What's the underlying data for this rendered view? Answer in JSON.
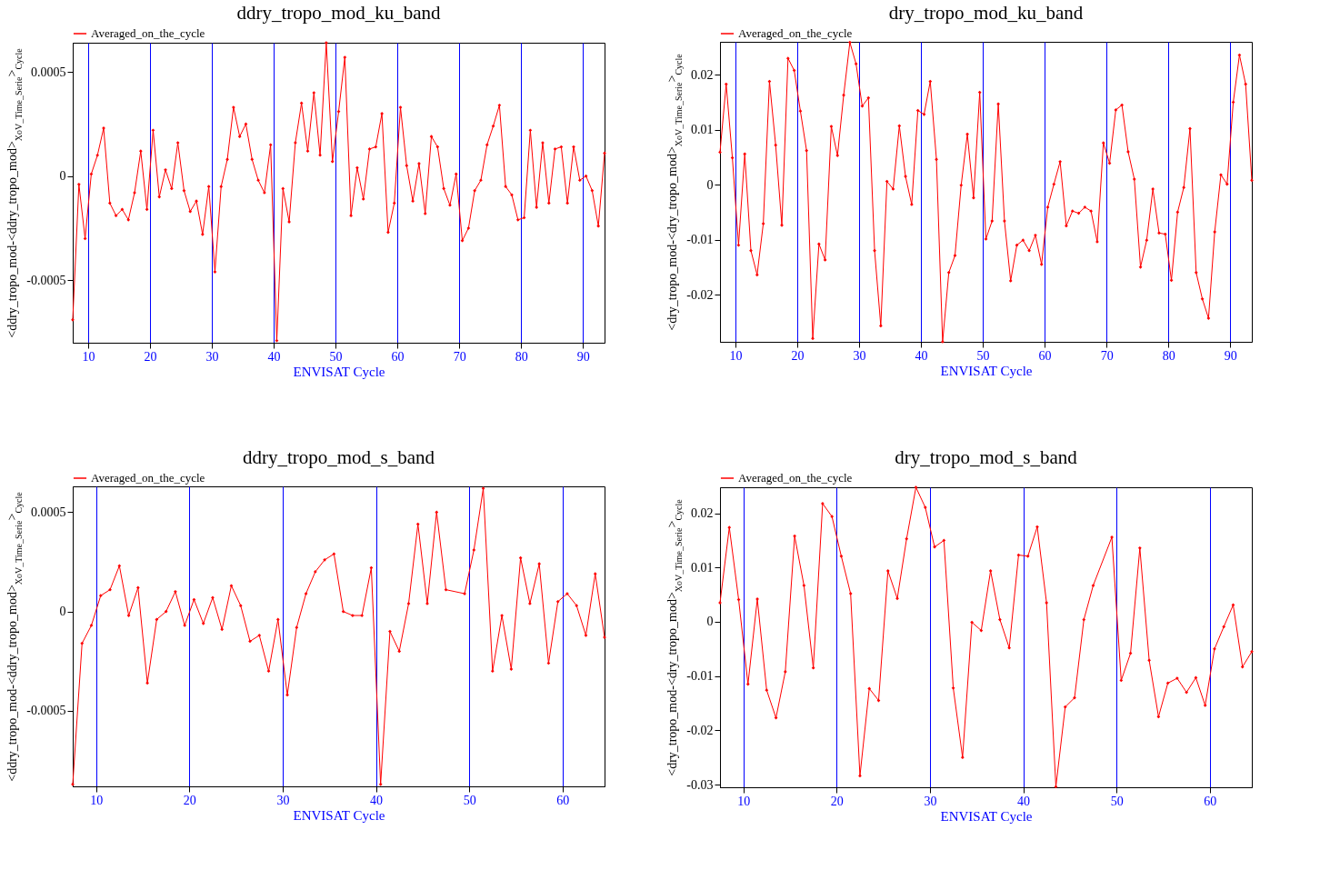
{
  "chart_data": [
    {
      "type": "line",
      "title": "ddry_tropo_mod_ku_band",
      "xlabel": "ENVISAT Cycle",
      "ylabel": "<ddry_tropo_mod-<ddry_tropo_mod>$_{XoV_Time_Serie}$>$_{Cycle}$",
      "xlim": [
        7.5,
        93.5
      ],
      "ylim": [
        -0.0008,
        0.00064
      ],
      "xticks": [
        10,
        20,
        30,
        40,
        50,
        60,
        70,
        80,
        90
      ],
      "yticks": [
        -0.0005,
        0,
        0.0005
      ],
      "grid": "x",
      "legend": "top left",
      "marker": "diamond",
      "line_style": "solid",
      "x": [
        7.5,
        8.5,
        9.5,
        10.5,
        11.5,
        12.5,
        13.5,
        14.5,
        15.5,
        16.5,
        17.5,
        18.5,
        19.5,
        20.5,
        21.5,
        22.5,
        23.5,
        24.5,
        25.5,
        26.5,
        27.5,
        28.5,
        29.5,
        30.5,
        31.5,
        32.5,
        33.5,
        34.5,
        35.5,
        36.5,
        37.5,
        38.5,
        39.5,
        40.5,
        41.5,
        42.5,
        43.5,
        44.5,
        45.5,
        46.5,
        47.5,
        48.5,
        49.5,
        50.5,
        51.5,
        52.5,
        53.5,
        54.5,
        55.5,
        56.5,
        57.5,
        58.5,
        59.5,
        60.5,
        61.5,
        62.5,
        63.5,
        64.5,
        65.5,
        66.5,
        67.5,
        68.5,
        69.5,
        70.5,
        71.5,
        72.5,
        73.5,
        74.5,
        75.5,
        76.5,
        77.5,
        78.5,
        79.5,
        80.5,
        81.5,
        82.5,
        83.5,
        84.5,
        85.5,
        86.5,
        87.5,
        88.5,
        89.5,
        90.5,
        91.5,
        92.5,
        93.5
      ],
      "series": [
        {
          "name": "Averaged_on_the_cycle",
          "color": "#ff0000",
          "values": [
            -0.00069,
            -4e-05,
            -0.0003,
            1e-05,
            0.0001,
            0.00023,
            -0.00013,
            -0.00019,
            -0.00016,
            -0.00021,
            -8e-05,
            0.00012,
            -0.00016,
            0.00022,
            -0.0001,
            3e-05,
            -6e-05,
            0.00016,
            -7e-05,
            -0.00017,
            -0.00012,
            -0.00028,
            -5e-05,
            -0.00046,
            -5e-05,
            8e-05,
            0.00033,
            0.00019,
            0.00025,
            8e-05,
            -2e-05,
            -8e-05,
            0.00015,
            -0.00079,
            -6e-05,
            -0.00022,
            0.00016,
            0.00035,
            0.00012,
            0.0004,
            0.0001,
            0.00064,
            7e-05,
            0.00031,
            0.00057,
            -0.00019,
            4e-05,
            -0.00011,
            0.00013,
            0.00014,
            0.0003,
            -0.00027,
            -0.00013,
            0.00033,
            5e-05,
            -0.00012,
            6e-05,
            -0.00018,
            0.00019,
            0.00014,
            -6e-05,
            -0.00014,
            1e-05,
            -0.00031,
            -0.00025,
            -7e-05,
            -2e-05,
            0.00015,
            0.00024,
            0.00034,
            -5e-05,
            -9e-05,
            -0.00021,
            -0.0002,
            0.00022,
            -0.00015,
            0.00016,
            -0.00013,
            0.00013,
            0.00014,
            -0.00013,
            0.00014,
            -2e-05,
            0,
            -7e-05,
            -0.00024,
            0.00011
          ]
        }
      ]
    },
    {
      "type": "line",
      "title": "dry_tropo_mod_ku_band",
      "xlabel": "ENVISAT Cycle",
      "ylabel": "<dry_tropo_mod-<dry_tropo_mod>$_{XoV_Time_Serie}$>$_{Cycle}$",
      "xlim": [
        7.5,
        93.5
      ],
      "ylim": [
        -0.0286,
        0.026
      ],
      "xticks": [
        10,
        20,
        30,
        40,
        50,
        60,
        70,
        80,
        90
      ],
      "yticks": [
        -0.02,
        -0.01,
        0,
        0.01,
        0.02
      ],
      "grid": "x",
      "legend": "top left",
      "marker": "diamond",
      "line_style": "solid",
      "x": [
        7.5,
        8.5,
        9.5,
        10.5,
        11.5,
        12.5,
        13.5,
        14.5,
        15.5,
        16.5,
        17.5,
        18.5,
        19.5,
        20.5,
        21.5,
        22.5,
        23.5,
        24.5,
        25.5,
        26.5,
        27.5,
        28.5,
        29.5,
        30.5,
        31.5,
        32.5,
        33.5,
        34.5,
        35.5,
        36.5,
        37.5,
        38.5,
        39.5,
        40.5,
        41.5,
        42.5,
        43.5,
        44.5,
        45.5,
        46.5,
        47.5,
        48.5,
        49.5,
        50.5,
        51.5,
        52.5,
        53.5,
        54.5,
        55.5,
        56.5,
        57.5,
        58.5,
        59.5,
        60.5,
        61.5,
        62.5,
        63.5,
        64.5,
        65.5,
        66.5,
        67.5,
        68.5,
        69.5,
        70.5,
        71.5,
        72.5,
        73.5,
        74.5,
        75.5,
        76.5,
        77.5,
        78.5,
        79.5,
        80.5,
        81.5,
        82.5,
        83.5,
        84.5,
        85.5,
        86.5,
        87.5,
        88.5,
        89.5,
        90.5,
        91.5,
        92.5,
        93.5
      ],
      "series": [
        {
          "name": "Averaged_on_the_cycle",
          "color": "#ff0000",
          "values": [
            0.0059,
            0.0183,
            0.0049,
            -0.011,
            0.0056,
            -0.012,
            -0.0164,
            -0.0071,
            0.0188,
            0.0072,
            -0.0074,
            0.023,
            0.0208,
            0.0134,
            0.0062,
            -0.028,
            -0.0108,
            -0.0137,
            0.0106,
            0.0053,
            0.0163,
            0.0259,
            0.022,
            0.0143,
            0.0158,
            -0.012,
            -0.0257,
            0.0006,
            -0.0008,
            0.0107,
            0.0015,
            -0.0036,
            0.0135,
            0.0128,
            0.0188,
            0.0046,
            -0.0286,
            -0.016,
            -0.0129,
            -0.0001,
            0.0092,
            -0.0024,
            0.0168,
            -0.0099,
            -0.0066,
            0.0147,
            -0.0066,
            -0.0175,
            -0.011,
            -0.0101,
            -0.012,
            -0.0092,
            -0.0145,
            -0.0041,
            0.0001,
            0.0042,
            -0.0075,
            -0.0048,
            -0.0052,
            -0.0041,
            -0.0048,
            -0.0104,
            0.0076,
            0.0039,
            0.0136,
            0.0145,
            0.006,
            0.001,
            -0.015,
            -0.0101,
            -0.0008,
            -0.0088,
            -0.009,
            -0.0174,
            -0.005,
            -0.0005,
            0.0102,
            -0.016,
            -0.0208,
            -0.0243,
            -0.0086,
            0.0018,
            0.0001,
            0.015,
            0.0236,
            0.0183,
            0.0008
          ]
        }
      ]
    },
    {
      "type": "line",
      "title": "ddry_tropo_mod_s_band",
      "xlabel": "ENVISAT Cycle",
      "ylabel": "<ddry_tropo_mod-<ddry_tropo_mod>$_{XoV_Time_Serie}$>$_{Cycle}$",
      "xlim": [
        7.5,
        64.5
      ],
      "ylim": [
        -0.00088,
        0.00063
      ],
      "xticks": [
        10,
        20,
        30,
        40,
        50,
        60
      ],
      "yticks": [
        -0.0005,
        0,
        0.0005
      ],
      "grid": "x",
      "legend": "top left",
      "marker": "diamond",
      "line_style": "solid",
      "x": [
        7.5,
        8.5,
        9.5,
        10.5,
        11.5,
        12.5,
        13.5,
        14.5,
        15.5,
        16.5,
        17.5,
        18.5,
        19.5,
        20.5,
        21.5,
        22.5,
        23.5,
        24.5,
        25.5,
        26.5,
        27.5,
        28.5,
        29.5,
        30.5,
        31.5,
        32.5,
        33.5,
        34.5,
        35.5,
        36.5,
        37.5,
        38.5,
        39.5,
        40.5,
        41.5,
        42.5,
        43.5,
        44.5,
        45.5,
        46.5,
        47.5,
        49.5,
        50.5,
        51.5,
        52.5,
        53.5,
        54.5,
        55.5,
        56.5,
        57.5,
        58.5,
        59.5,
        60.5,
        61.5,
        62.5,
        63.5,
        64.5
      ],
      "series": [
        {
          "name": "Averaged_on_the_cycle",
          "color": "#ff0000",
          "values": [
            -0.00087,
            -0.00016,
            -7e-05,
            8e-05,
            0.00011,
            0.00023,
            -2e-05,
            0.00012,
            -0.00036,
            -4e-05,
            0,
            0.0001,
            -7e-05,
            6e-05,
            -6e-05,
            7e-05,
            -9e-05,
            0.00013,
            3e-05,
            -0.00015,
            -0.00012,
            -0.0003,
            -4e-05,
            -0.00042,
            -8e-05,
            9e-05,
            0.0002,
            0.00026,
            0.00029,
            0,
            -2e-05,
            -2e-05,
            0.00022,
            -0.00087,
            -0.0001,
            -0.0002,
            4e-05,
            0.00044,
            4e-05,
            0.0005,
            0.00011,
            9e-05,
            0.00031,
            0.00062,
            -0.0003,
            -2e-05,
            -0.00029,
            0.00027,
            4e-05,
            0.00024,
            -0.00026,
            5e-05,
            9e-05,
            3e-05,
            -0.00012,
            0.00019,
            -0.00013
          ]
        }
      ]
    },
    {
      "type": "line",
      "title": "dry_tropo_mod_s_band",
      "xlabel": "ENVISAT Cycle",
      "ylabel": "<dry_tropo_mod-<dry_tropo_mod>$_{XoV_Time_Serie}$>$_{Cycle}$",
      "xlim": [
        7.5,
        64.5
      ],
      "ylim": [
        -0.0305,
        0.0248
      ],
      "xticks": [
        10,
        20,
        30,
        40,
        50,
        60
      ],
      "yticks": [
        -0.03,
        -0.02,
        -0.01,
        0,
        0.01,
        0.02
      ],
      "grid": "x",
      "legend": "top left",
      "marker": "diamond",
      "line_style": "solid",
      "x": [
        7.5,
        8.5,
        9.5,
        10.5,
        11.5,
        12.5,
        13.5,
        14.5,
        15.5,
        16.5,
        17.5,
        18.5,
        19.5,
        20.5,
        21.5,
        22.5,
        23.5,
        24.5,
        25.5,
        26.5,
        27.5,
        28.5,
        29.5,
        30.5,
        31.5,
        32.5,
        33.5,
        34.5,
        35.5,
        36.5,
        37.5,
        38.5,
        39.5,
        40.5,
        41.5,
        42.5,
        43.5,
        44.5,
        45.5,
        46.5,
        47.5,
        49.5,
        50.5,
        51.5,
        52.5,
        53.5,
        54.5,
        55.5,
        56.5,
        57.5,
        58.5,
        59.5,
        60.5,
        61.5,
        62.5,
        63.5,
        64.5
      ],
      "series": [
        {
          "name": "Averaged_on_the_cycle",
          "color": "#ff0000",
          "values": [
            0.0035,
            0.0174,
            0.0041,
            -0.0115,
            0.0042,
            -0.0126,
            -0.0177,
            -0.0092,
            0.0158,
            0.0067,
            -0.0085,
            0.0218,
            0.0194,
            0.0121,
            0.0052,
            -0.0284,
            -0.0123,
            -0.0145,
            0.0094,
            0.0043,
            0.0153,
            0.0248,
            0.0211,
            0.0138,
            0.015,
            -0.0122,
            -0.025,
            -0.0001,
            -0.0016,
            0.0094,
            0.0004,
            -0.0048,
            0.0123,
            0.0121,
            0.0175,
            0.0035,
            -0.0304,
            -0.0157,
            -0.014,
            0.0004,
            0.0067,
            0.0156,
            -0.0108,
            -0.0058,
            0.0136,
            -0.0071,
            -0.0175,
            -0.0113,
            -0.0104,
            -0.013,
            -0.0103,
            -0.0154,
            -0.005,
            -0.0009,
            0.0031,
            -0.0083,
            -0.0055
          ]
        }
      ]
    }
  ]
}
